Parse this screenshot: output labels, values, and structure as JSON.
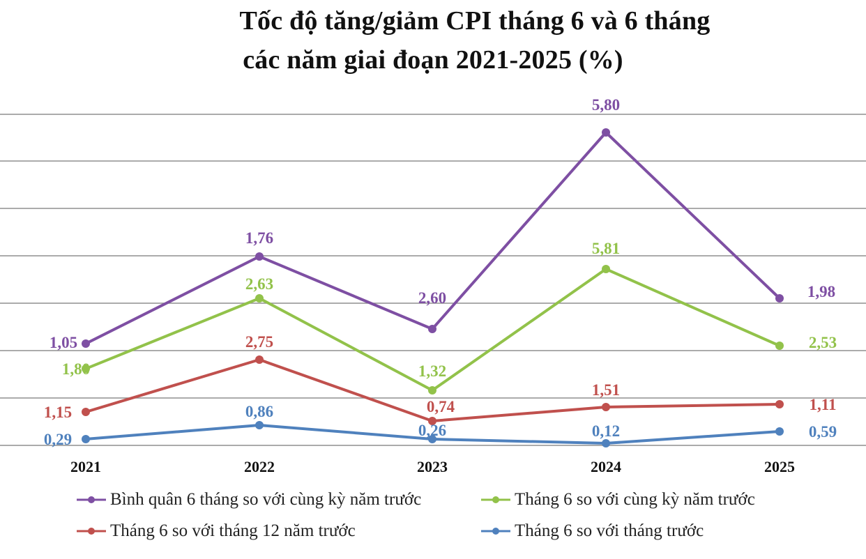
{
  "title_line1": "Tốc độ tăng/giảm CPI tháng 6 và 6 tháng",
  "title_line2": "các năm giai đoạn 2021-2025 (%)",
  "chart_data": {
    "type": "line",
    "categories": [
      "2021",
      "2022",
      "2023",
      "2024",
      "2025"
    ],
    "grid": true,
    "legend_position": "bottom",
    "series": [
      {
        "name": "Bình quân 6 tháng so với cùng kỳ năm trước",
        "color": "#7e4fa3",
        "values": [
          1.05,
          1.76,
          2.6,
          5.8,
          1.98
        ],
        "labels": [
          "1,05",
          "1,76",
          "2,60",
          "5,80",
          "1,98"
        ]
      },
      {
        "name": "Tháng 6 so với cùng kỳ năm trước",
        "color": "#92c24a",
        "values": [
          1.8,
          2.63,
          1.32,
          5.81,
          2.53
        ],
        "labels": [
          "1,80",
          "2,63",
          "1,32",
          "5,81",
          "2,53"
        ]
      },
      {
        "name": "Tháng 6 so với tháng 12 năm trước",
        "color": "#c0504d",
        "values": [
          1.15,
          2.75,
          0.74,
          1.51,
          1.11
        ],
        "labels": [
          "1,15",
          "2,75",
          "0,74",
          "1,51",
          "1,11"
        ]
      },
      {
        "name": "Tháng 6 so với tháng trước",
        "color": "#4f81bd",
        "values": [
          0.29,
          0.86,
          0.26,
          0.12,
          0.59
        ],
        "labels": [
          "0,29",
          "0,86",
          "0,26",
          "0,12",
          "0,59"
        ]
      }
    ]
  }
}
